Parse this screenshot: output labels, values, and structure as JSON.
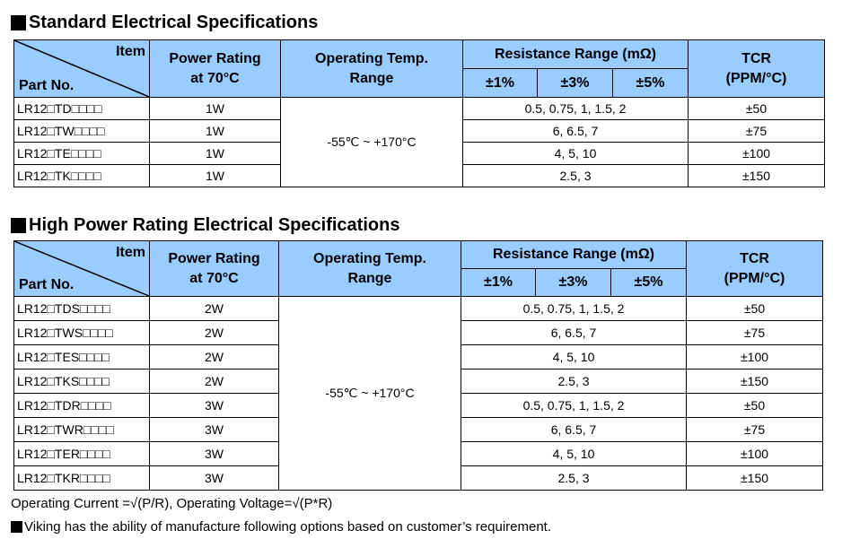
{
  "section1": {
    "title": "Standard Electrical Specifications",
    "header": {
      "item": "Item",
      "part_no": "Part No.",
      "power_l1": "Power Rating",
      "power_l2": "at 70°C",
      "temp_l1": "Operating Temp.",
      "temp_l2": "Range",
      "resistance": "Resistance Range (mΩ)",
      "tol1": "±1%",
      "tol3": "±3%",
      "tol5": "±5%",
      "tcr_l1": "TCR",
      "tcr_l2": "(PPM/°C)"
    },
    "temp_range": "-55℃ ~ +170°C",
    "rows": [
      {
        "part": "LR12□TD□□□□",
        "power": "1W",
        "range": "0.5, 0.75, 1, 1.5, 2",
        "tcr": "±50"
      },
      {
        "part": "LR12□TW□□□□",
        "power": "1W",
        "range": "6, 6.5, 7",
        "tcr": "±75"
      },
      {
        "part": "LR12□TE□□□□",
        "power": "1W",
        "range": "4, 5, 10",
        "tcr": "±100"
      },
      {
        "part": "LR12□TK□□□□",
        "power": "1W",
        "range": "2.5, 3",
        "tcr": "±150"
      }
    ]
  },
  "section2": {
    "title": "High Power Rating Electrical Specifications",
    "header": {
      "item": "Item",
      "part_no": "Part No.",
      "power_l1": "Power Rating",
      "power_l2": "at 70°C",
      "temp_l1": "Operating Temp.",
      "temp_l2": "Range",
      "resistance": "Resistance Range (mΩ)",
      "tol1": "±1%",
      "tol3": "±3%",
      "tol5": "±5%",
      "tcr_l1": "TCR",
      "tcr_l2": "(PPM/°C)"
    },
    "temp_range": "-55℃ ~ +170°C",
    "rows": [
      {
        "part": "LR12□TDS□□□□",
        "power": "2W",
        "range": "0.5, 0.75, 1, 1.5, 2",
        "tcr": "±50"
      },
      {
        "part": "LR12□TWS□□□□",
        "power": "2W",
        "range": "6, 6.5, 7",
        "tcr": "±75"
      },
      {
        "part": "LR12□TES□□□□",
        "power": "2W",
        "range": "4, 5, 10",
        "tcr": "±100"
      },
      {
        "part": "LR12□TKS□□□□",
        "power": "2W",
        "range": "2.5, 3",
        "tcr": "±150"
      },
      {
        "part": "LR12□TDR□□□□",
        "power": "3W",
        "range": "0.5, 0.75, 1, 1.5, 2",
        "tcr": "±50"
      },
      {
        "part": "LR12□TWR□□□□",
        "power": "3W",
        "range": "6, 6.5, 7",
        "tcr": "±75"
      },
      {
        "part": "LR12□TER□□□□",
        "power": "3W",
        "range": "4, 5, 10",
        "tcr": "±100"
      },
      {
        "part": "LR12□TKR□□□□",
        "power": "3W",
        "range": "2.5, 3",
        "tcr": "±150"
      }
    ]
  },
  "formula": "Operating Current =√(P/R), Operating Voltage=√(P*R)",
  "note": "Viking has the ability of manufacture following options based on customer’s requirement."
}
